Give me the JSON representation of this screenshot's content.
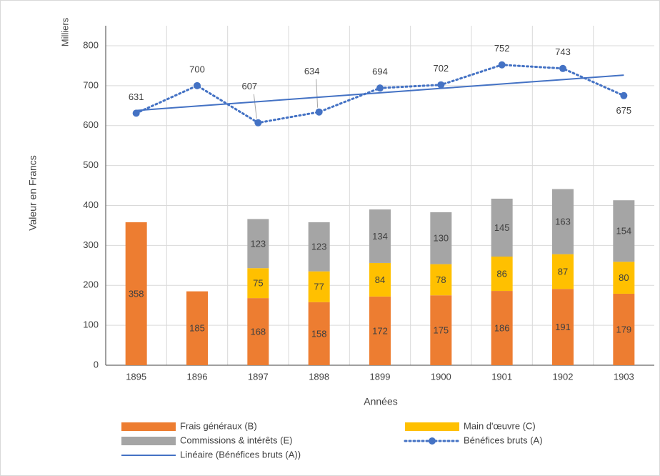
{
  "chart_data": {
    "type": "bar",
    "y_label": "Valeur en Francs",
    "y_unit_label": "Milliers",
    "x_label": "Années",
    "categories": [
      "1895",
      "1896",
      "1897",
      "1898",
      "1899",
      "1900",
      "1901",
      "1902",
      "1903"
    ],
    "series": [
      {
        "name": "Frais généraux (B)",
        "type": "bar",
        "color": "#ED7D31",
        "values": [
          358,
          185,
          168,
          158,
          172,
          175,
          186,
          191,
          179
        ]
      },
      {
        "name": "Main d'œuvre (C)",
        "type": "bar",
        "color": "#FFC000",
        "values": [
          null,
          null,
          75,
          77,
          84,
          78,
          86,
          87,
          80
        ]
      },
      {
        "name": "Commissions & intérêts (E)",
        "type": "bar",
        "color": "#A5A5A5",
        "values": [
          null,
          null,
          123,
          123,
          134,
          130,
          145,
          163,
          154
        ]
      },
      {
        "name": "Bénéfices bruts (A)",
        "type": "line",
        "color": "#4472C4",
        "values": [
          631,
          700,
          607,
          634,
          694,
          702,
          752,
          743,
          675
        ]
      },
      {
        "name": "Linéaire (Bénéfices bruts (A))",
        "type": "trend",
        "color": "#4472C4",
        "values": [
          637.8,
          648.9,
          659.9,
          671.0,
          682.0,
          693.1,
          704.1,
          715.2,
          726.2
        ]
      }
    ],
    "ylim": [
      0,
      850
    ],
    "yticks": [
      0,
      100,
      200,
      300,
      400,
      500,
      600,
      700,
      800
    ],
    "grid": true
  }
}
